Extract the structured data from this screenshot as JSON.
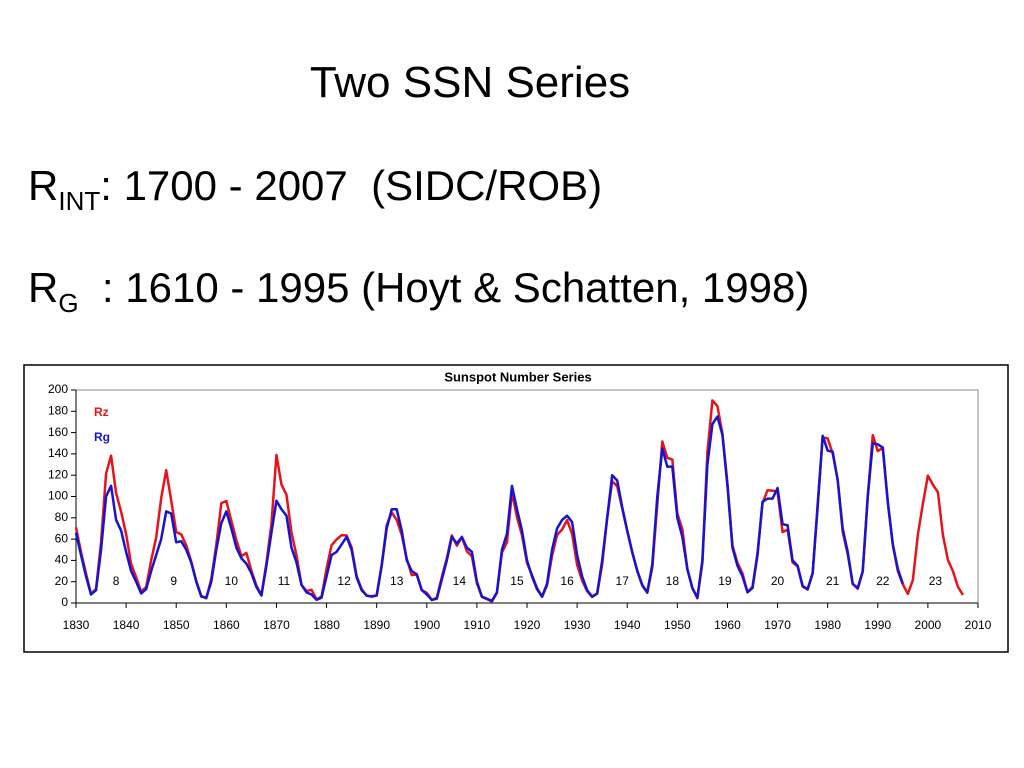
{
  "slide": {
    "title": "Two SSN Series",
    "lines": [
      {
        "symbol": "R",
        "subscript": "INT",
        "text": ": 1700 - 2007  (SIDC/ROB)"
      },
      {
        "symbol": "R",
        "subscript": "G",
        "text": "  : 1610 - 1995 (Hoyt & Schatten, 1998)"
      }
    ]
  },
  "chart_data": {
    "type": "line",
    "title": "Sunspot Number Series",
    "x": [
      1830,
      1831,
      1832,
      1833,
      1834,
      1835,
      1836,
      1837,
      1838,
      1839,
      1840,
      1841,
      1842,
      1843,
      1844,
      1845,
      1846,
      1847,
      1848,
      1849,
      1850,
      1851,
      1852,
      1853,
      1854,
      1855,
      1856,
      1857,
      1858,
      1859,
      1860,
      1861,
      1862,
      1863,
      1864,
      1865,
      1866,
      1867,
      1868,
      1869,
      1870,
      1871,
      1872,
      1873,
      1874,
      1875,
      1876,
      1877,
      1878,
      1879,
      1880,
      1881,
      1882,
      1883,
      1884,
      1885,
      1886,
      1887,
      1888,
      1889,
      1890,
      1891,
      1892,
      1893,
      1894,
      1895,
      1896,
      1897,
      1898,
      1899,
      1900,
      1901,
      1902,
      1903,
      1904,
      1905,
      1906,
      1907,
      1908,
      1909,
      1910,
      1911,
      1912,
      1913,
      1914,
      1915,
      1916,
      1917,
      1918,
      1919,
      1920,
      1921,
      1922,
      1923,
      1924,
      1925,
      1926,
      1927,
      1928,
      1929,
      1930,
      1931,
      1932,
      1933,
      1934,
      1935,
      1936,
      1937,
      1938,
      1939,
      1940,
      1941,
      1942,
      1943,
      1944,
      1945,
      1946,
      1947,
      1948,
      1949,
      1950,
      1951,
      1952,
      1953,
      1954,
      1955,
      1956,
      1957,
      1958,
      1959,
      1960,
      1961,
      1962,
      1963,
      1964,
      1965,
      1966,
      1967,
      1968,
      1969,
      1970,
      1971,
      1972,
      1973,
      1974,
      1975,
      1976,
      1977,
      1978,
      1979,
      1980,
      1981,
      1982,
      1983,
      1984,
      1985,
      1986,
      1987,
      1988,
      1989,
      1990,
      1991,
      1992,
      1993,
      1994,
      1995,
      1996,
      1997,
      1998,
      1999,
      2000,
      2001,
      2002,
      2003,
      2004,
      2005,
      2006,
      2007
    ],
    "series": [
      {
        "name": "Rz",
        "color": "#e8131a",
        "values": [
          71.0,
          47.8,
          27.5,
          8.5,
          13.2,
          56.9,
          121.5,
          138.3,
          103.2,
          85.7,
          64.6,
          36.7,
          24.2,
          10.7,
          15.0,
          40.1,
          61.5,
          98.5,
          124.7,
          96.3,
          66.6,
          64.5,
          54.1,
          39.0,
          20.6,
          6.7,
          4.3,
          22.7,
          54.8,
          93.8,
          95.8,
          77.2,
          59.1,
          44.0,
          47.0,
          30.5,
          16.3,
          7.3,
          37.6,
          74.0,
          139.0,
          111.2,
          101.6,
          66.2,
          44.7,
          17.0,
          11.3,
          12.4,
          3.4,
          6.0,
          32.3,
          54.3,
          59.7,
          63.7,
          63.5,
          52.2,
          25.4,
          13.1,
          6.8,
          6.3,
          7.1,
          35.6,
          73.0,
          85.1,
          78.0,
          64.0,
          41.8,
          26.2,
          26.7,
          12.1,
          9.5,
          2.7,
          5.0,
          24.4,
          42.0,
          63.5,
          53.8,
          62.0,
          48.5,
          43.9,
          18.6,
          5.7,
          3.6,
          1.4,
          9.6,
          47.4,
          57.1,
          103.9,
          80.6,
          63.6,
          37.6,
          26.1,
          14.2,
          5.8,
          16.7,
          44.3,
          63.9,
          69.0,
          77.8,
          64.9,
          35.7,
          21.2,
          11.1,
          5.7,
          8.7,
          36.1,
          79.7,
          114.4,
          109.6,
          88.8,
          67.8,
          47.5,
          30.6,
          16.3,
          9.6,
          33.2,
          92.6,
          151.6,
          136.3,
          134.7,
          83.9,
          69.4,
          31.5,
          13.9,
          4.4,
          38.0,
          141.7,
          190.2,
          184.8,
          159.0,
          112.3,
          53.9,
          37.6,
          27.9,
          10.2,
          15.1,
          47.0,
          93.8,
          105.9,
          105.5,
          104.5,
          66.6,
          68.9,
          38.0,
          34.5,
          15.5,
          12.6,
          27.5,
          92.5,
          155.4,
          154.6,
          140.4,
          115.9,
          66.6,
          45.9,
          17.9,
          13.4,
          29.4,
          100.2,
          157.6,
          142.6,
          145.7,
          94.3,
          54.6,
          29.9,
          17.5,
          8.6,
          21.5,
          64.3,
          93.3,
          119.6,
          111.0,
          104.0,
          63.7,
          40.4,
          29.8,
          15.2,
          7.5
        ]
      },
      {
        "name": "Rg",
        "color": "#1414d2",
        "values": [
          66,
          45,
          25,
          8,
          12,
          50,
          100,
          110,
          78,
          68,
          48,
          30,
          20,
          9,
          13,
          30,
          45,
          60,
          86,
          84,
          57,
          58,
          50,
          38,
          20,
          6,
          5,
          20,
          50,
          75,
          86,
          70,
          52,
          42,
          37,
          28,
          15,
          7,
          35,
          66,
          96,
          88,
          82,
          52,
          38,
          17,
          10,
          8,
          3,
          5,
          25,
          45,
          48,
          55,
          62,
          50,
          24,
          12,
          7,
          6,
          7,
          35,
          70,
          88,
          88,
          68,
          40,
          30,
          27,
          12,
          8,
          3,
          4,
          22,
          40,
          62,
          56,
          62,
          52,
          48,
          20,
          6,
          4,
          2,
          10,
          50,
          65,
          110,
          88,
          68,
          40,
          25,
          13,
          6,
          18,
          50,
          70,
          78,
          82,
          76,
          45,
          25,
          12,
          6,
          9,
          40,
          80,
          120,
          115,
          90,
          68,
          48,
          30,
          17,
          10,
          36,
          100,
          145,
          128,
          128,
          80,
          62,
          32,
          14,
          5,
          40,
          130,
          168,
          175,
          158,
          110,
          52,
          35,
          25,
          10,
          14,
          45,
          95,
          98,
          98,
          108,
          74,
          73,
          40,
          35,
          16,
          13,
          28,
          90,
          157,
          143,
          142,
          115,
          70,
          48,
          18,
          14,
          30,
          100,
          150,
          149,
          146,
          95,
          55,
          32,
          18,
          null,
          null,
          null,
          null,
          null,
          null,
          null,
          null,
          null,
          null,
          null,
          null
        ]
      }
    ],
    "xlim": [
      1830,
      2010
    ],
    "xticks": [
      1830,
      1840,
      1850,
      1860,
      1870,
      1880,
      1890,
      1900,
      1910,
      1920,
      1930,
      1940,
      1950,
      1960,
      1970,
      1980,
      1990,
      2000,
      2010
    ],
    "ylim": [
      0,
      200
    ],
    "yticks": [
      0,
      20,
      40,
      60,
      80,
      100,
      120,
      140,
      160,
      180,
      200
    ],
    "legend": "top-left",
    "annotations": [
      {
        "text": "8",
        "x": 1838,
        "y": 20
      },
      {
        "text": "9",
        "x": 1849.5,
        "y": 20
      },
      {
        "text": "10",
        "x": 1861,
        "y": 20
      },
      {
        "text": "11",
        "x": 1871.5,
        "y": 20
      },
      {
        "text": "12",
        "x": 1883.5,
        "y": 20
      },
      {
        "text": "13",
        "x": 1894,
        "y": 20
      },
      {
        "text": "14",
        "x": 1906.5,
        "y": 20
      },
      {
        "text": "15",
        "x": 1918,
        "y": 20
      },
      {
        "text": "16",
        "x": 1928,
        "y": 20
      },
      {
        "text": "17",
        "x": 1939,
        "y": 20
      },
      {
        "text": "18",
        "x": 1949,
        "y": 20
      },
      {
        "text": "19",
        "x": 1959.5,
        "y": 20
      },
      {
        "text": "20",
        "x": 1970,
        "y": 20
      },
      {
        "text": "21",
        "x": 1981,
        "y": 20
      },
      {
        "text": "22",
        "x": 1991,
        "y": 20
      },
      {
        "text": "23",
        "x": 2001.5,
        "y": 20
      }
    ]
  }
}
